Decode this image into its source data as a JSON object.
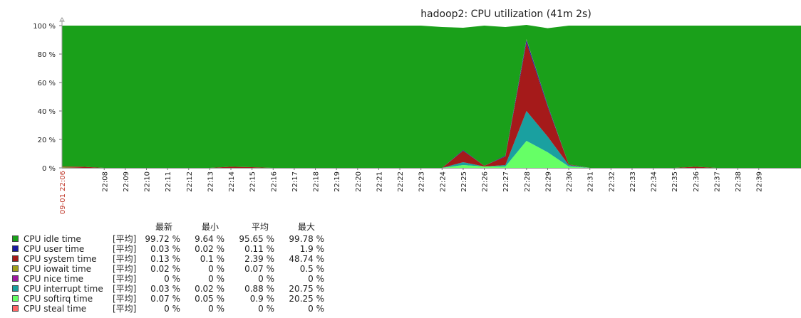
{
  "chart_data": {
    "type": "area",
    "stacked": true,
    "title": "hadoop2: CPU utilization (41m 2s)",
    "y_ticks": [
      "0 %",
      "20 %",
      "40 %",
      "60 %",
      "80 %",
      "100 %"
    ],
    "ylim": [
      0,
      100
    ],
    "x_first_label": "09-01 22:06",
    "x_tick_labels": [
      "22:08",
      "22:09",
      "22:10",
      "22:11",
      "22:12",
      "22:13",
      "22:14",
      "22:15",
      "22:16",
      "22:17",
      "22:18",
      "22:19",
      "22:20",
      "22:21",
      "22:22",
      "22:23",
      "22:24",
      "22:25",
      "22:26",
      "22:27",
      "22:28",
      "22:29",
      "22:30",
      "22:31",
      "22:32",
      "22:33",
      "22:34",
      "22:35",
      "22:36",
      "22:37",
      "22:38",
      "22:39"
    ],
    "x_minutes": [
      0,
      1,
      2,
      3,
      4,
      5,
      6,
      7,
      8,
      9,
      10,
      11,
      12,
      13,
      14,
      15,
      16,
      17,
      18,
      19,
      20,
      21,
      22,
      23,
      24,
      25,
      26,
      27,
      28,
      29,
      30,
      31,
      32,
      33,
      34,
      35
    ],
    "xlim": [
      0,
      35
    ],
    "series": [
      {
        "name": "CPU softirq time",
        "color": "#66ff66",
        "values": [
          0.3,
          0,
          0,
          0,
          0,
          0,
          0,
          0,
          0,
          0,
          0,
          0,
          0,
          0,
          0,
          0,
          0,
          0,
          0,
          2,
          1,
          1,
          19,
          11,
          1,
          0,
          0,
          0,
          0,
          0,
          0,
          0,
          0,
          0,
          0,
          0
        ]
      },
      {
        "name": "CPU interrupt time",
        "color": "#1aa0a0",
        "values": [
          0,
          0,
          0,
          0,
          0,
          0,
          0,
          0,
          0,
          0,
          0,
          0,
          0,
          0,
          0,
          0,
          0,
          0,
          0,
          2,
          0,
          1,
          21,
          11,
          1,
          0,
          0,
          0,
          0,
          0,
          0,
          0,
          0,
          0,
          0,
          0
        ]
      },
      {
        "name": "CPU system time",
        "color": "#a51a1a",
        "values": [
          0.5,
          0.8,
          0,
          0,
          0,
          0,
          0,
          0,
          0.8,
          0.5,
          0,
          0,
          0,
          0,
          0,
          0,
          0,
          0,
          0,
          8,
          0.5,
          6,
          48,
          21,
          0.5,
          0,
          0,
          0,
          0,
          0,
          0.8,
          0,
          0,
          0,
          0,
          0
        ]
      },
      {
        "name": "CPU user time",
        "color": "#1a1aa0",
        "values": [
          0,
          0,
          0,
          0,
          0,
          0,
          0,
          0,
          0,
          0,
          0,
          0,
          0,
          0,
          0,
          0,
          0,
          0,
          0,
          0.5,
          0,
          0.5,
          2,
          1,
          0,
          0,
          0,
          0,
          0,
          0,
          0,
          0,
          0,
          0,
          0,
          0
        ]
      },
      {
        "name": "CPU iowait time",
        "color": "#a0a01a",
        "values": [
          0.2,
          0,
          0,
          0,
          0,
          0,
          0,
          0,
          0,
          0,
          0,
          0,
          0,
          0,
          0,
          0,
          0,
          0,
          0,
          0,
          0,
          0,
          0.5,
          0.2,
          0,
          0,
          0,
          0,
          0,
          0,
          0,
          0,
          0,
          0,
          0,
          0
        ]
      },
      {
        "name": "CPU idle time",
        "color": "#1aa01a",
        "values": [
          99,
          99.2,
          100,
          100,
          100,
          100,
          100,
          100,
          99.2,
          99.5,
          100,
          100,
          100,
          100,
          100,
          100,
          100,
          100,
          99,
          86,
          98.5,
          90.5,
          10,
          54,
          97.5,
          100,
          100,
          100,
          100,
          100,
          99.2,
          100,
          100,
          100,
          100,
          100
        ]
      }
    ]
  },
  "legend": {
    "headers": [
      "最新",
      "最小",
      "平均",
      "最大"
    ],
    "rows": [
      {
        "name": "CPU idle time",
        "agg": "[平均]",
        "color": "#1aa01a",
        "last": "99.72 %",
        "min": "9.64 %",
        "avg": "95.65 %",
        "max": "99.78 %"
      },
      {
        "name": "CPU user time",
        "agg": "[平均]",
        "color": "#1a1aa0",
        "last": "0.03 %",
        "min": "0.02 %",
        "avg": "0.11 %",
        "max": "1.9 %"
      },
      {
        "name": "CPU system time",
        "agg": "[平均]",
        "color": "#a51a1a",
        "last": "0.13 %",
        "min": "0.1 %",
        "avg": "2.39 %",
        "max": "48.74 %"
      },
      {
        "name": "CPU iowait time",
        "agg": "[平均]",
        "color": "#a0a01a",
        "last": "0.02 %",
        "min": "0 %",
        "avg": "0.07 %",
        "max": "0.5 %"
      },
      {
        "name": "CPU nice time",
        "agg": "[平均]",
        "color": "#a01aa0",
        "last": "0 %",
        "min": "0 %",
        "avg": "0 %",
        "max": "0 %"
      },
      {
        "name": "CPU interrupt time",
        "agg": "[平均]",
        "color": "#1aa0a0",
        "last": "0.03 %",
        "min": "0.02 %",
        "avg": "0.88 %",
        "max": "20.75 %"
      },
      {
        "name": "CPU softirq time",
        "agg": "[平均]",
        "color": "#66ff66",
        "last": "0.07 %",
        "min": "0.05 %",
        "avg": "0.9 %",
        "max": "20.25 %"
      },
      {
        "name": "CPU steal time",
        "agg": "[平均]",
        "color": "#ff6666",
        "last": "0 %",
        "min": "0 %",
        "avg": "0 %",
        "max": "0 %"
      }
    ]
  }
}
